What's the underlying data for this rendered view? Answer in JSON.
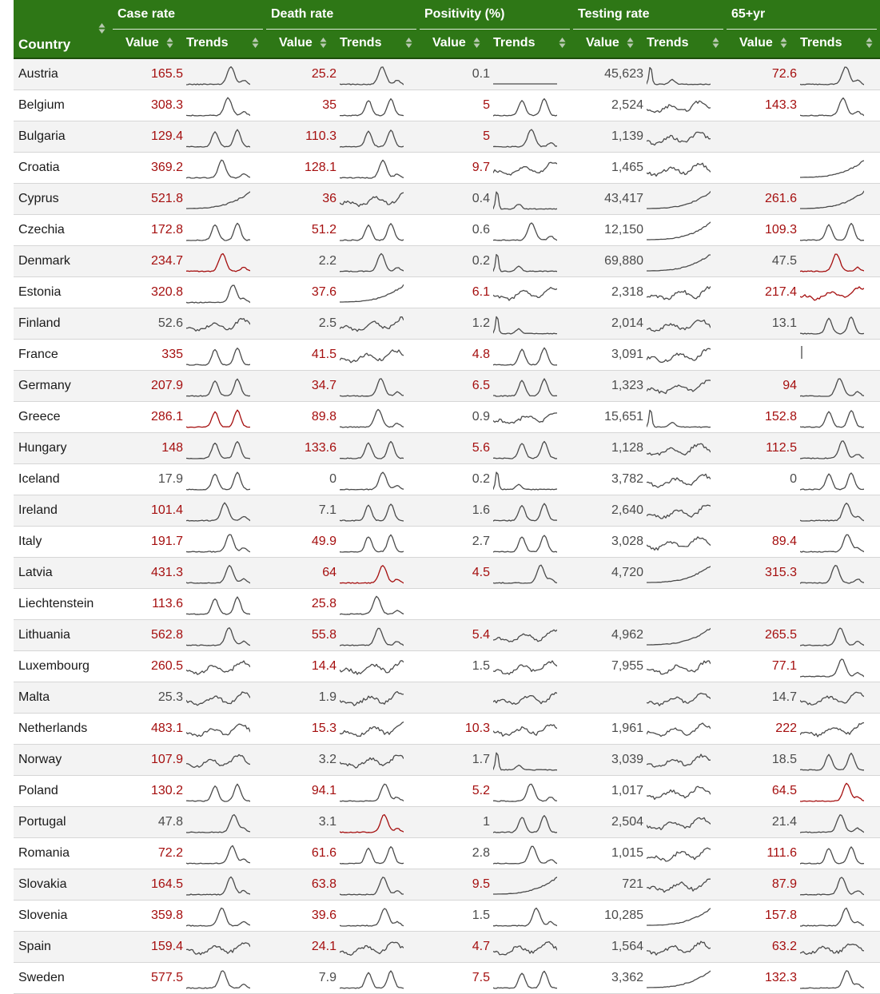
{
  "header": {
    "groups": [
      "Case rate",
      "Death rate",
      "Positivity (%)",
      "Testing rate",
      "65+yr"
    ],
    "country_label": "Country",
    "value_label": "Value",
    "trends_label": "Trends"
  },
  "colors": {
    "header_bg": "#2e7716",
    "above_threshold": "#a50f0f",
    "normal": "#4b4b4b",
    "highlight_trend": "#a50f0f"
  },
  "icons": {
    "sort": "sort-up-down-icon"
  },
  "rows": [
    {
      "country": "Austria",
      "values": [
        "165.5",
        "25.2",
        "0.1",
        "45,623",
        "72.6"
      ],
      "red": [
        true,
        true,
        false,
        false,
        true
      ],
      "trends": [
        "hump",
        "hump",
        "flat-hump",
        "flat-spike",
        "hump"
      ],
      "trend_red": [
        false,
        false,
        false,
        false,
        false
      ]
    },
    {
      "country": "Belgium",
      "values": [
        "308.3",
        "35",
        "5",
        "2,524",
        "143.3"
      ],
      "red": [
        true,
        true,
        true,
        false,
        true
      ],
      "trends": [
        "hump",
        "twin",
        "twin",
        "wavy",
        "hump"
      ],
      "trend_red": [
        false,
        false,
        false,
        false,
        false
      ]
    },
    {
      "country": "Bulgaria",
      "values": [
        "129.4",
        "110.3",
        "5",
        "1,139",
        ""
      ],
      "red": [
        true,
        true,
        true,
        false,
        false
      ],
      "trends": [
        "twin",
        "twin",
        "hump",
        "wavy",
        ""
      ],
      "trend_red": [
        false,
        false,
        false,
        false,
        false
      ]
    },
    {
      "country": "Croatia",
      "values": [
        "369.2",
        "128.1",
        "9.7",
        "1,465",
        ""
      ],
      "red": [
        true,
        true,
        true,
        false,
        false
      ],
      "trends": [
        "hump",
        "hump",
        "wavy",
        "wavy",
        "rise"
      ],
      "trend_red": [
        false,
        false,
        false,
        false,
        false
      ]
    },
    {
      "country": "Cyprus",
      "values": [
        "521.8",
        "36",
        "0.4",
        "43,417",
        "261.6"
      ],
      "red": [
        true,
        true,
        false,
        false,
        true
      ],
      "trends": [
        "rise",
        "wavy",
        "flat-spike",
        "rise",
        "rise"
      ],
      "trend_red": [
        false,
        false,
        false,
        false,
        false
      ]
    },
    {
      "country": "Czechia",
      "values": [
        "172.8",
        "51.2",
        "0.6",
        "12,150",
        "109.3"
      ],
      "red": [
        true,
        true,
        false,
        false,
        true
      ],
      "trends": [
        "twin",
        "twin",
        "hump",
        "rise",
        "twin"
      ],
      "trend_red": [
        false,
        false,
        false,
        false,
        false
      ]
    },
    {
      "country": "Denmark",
      "values": [
        "234.7",
        "2.2",
        "0.2",
        "69,880",
        "47.5"
      ],
      "red": [
        true,
        false,
        false,
        false,
        false
      ],
      "trends": [
        "hump",
        "hump",
        "flat-spike",
        "rise",
        "hump"
      ],
      "trend_red": [
        true,
        false,
        false,
        false,
        true
      ]
    },
    {
      "country": "Estonia",
      "values": [
        "320.8",
        "37.6",
        "6.1",
        "2,318",
        "217.4"
      ],
      "red": [
        true,
        true,
        true,
        false,
        true
      ],
      "trends": [
        "hump",
        "rise",
        "wavy",
        "wavy",
        "wavy"
      ],
      "trend_red": [
        false,
        false,
        false,
        false,
        true
      ]
    },
    {
      "country": "Finland",
      "values": [
        "52.6",
        "2.5",
        "1.2",
        "2,014",
        "13.1"
      ],
      "red": [
        false,
        false,
        false,
        false,
        false
      ],
      "trends": [
        "wavy",
        "wavy",
        "flat-spike",
        "wavy",
        "twin"
      ],
      "trend_red": [
        false,
        false,
        false,
        false,
        false
      ]
    },
    {
      "country": "France",
      "values": [
        "335",
        "41.5",
        "4.8",
        "3,091",
        ""
      ],
      "red": [
        true,
        true,
        true,
        false,
        false
      ],
      "trends": [
        "twin",
        "wavy",
        "twin",
        "wavy",
        "dots"
      ],
      "trend_red": [
        false,
        false,
        false,
        false,
        false
      ]
    },
    {
      "country": "Germany",
      "values": [
        "207.9",
        "34.7",
        "6.5",
        "1,323",
        "94"
      ],
      "red": [
        true,
        true,
        true,
        false,
        true
      ],
      "trends": [
        "twin",
        "hump",
        "twin",
        "wavy",
        "hump"
      ],
      "trend_red": [
        false,
        false,
        false,
        false,
        false
      ]
    },
    {
      "country": "Greece",
      "values": [
        "286.1",
        "89.8",
        "0.9",
        "15,651",
        "152.8"
      ],
      "red": [
        true,
        true,
        false,
        false,
        true
      ],
      "trends": [
        "twin",
        "hump",
        "wavy",
        "flat-spike",
        "twin"
      ],
      "trend_red": [
        true,
        false,
        false,
        false,
        false
      ]
    },
    {
      "country": "Hungary",
      "values": [
        "148",
        "133.6",
        "5.6",
        "1,128",
        "112.5"
      ],
      "red": [
        true,
        true,
        true,
        false,
        true
      ],
      "trends": [
        "twin",
        "twin",
        "twin",
        "wavy",
        "hump"
      ],
      "trend_red": [
        false,
        false,
        false,
        false,
        false
      ]
    },
    {
      "country": "Iceland",
      "values": [
        "17.9",
        "0",
        "0.2",
        "3,782",
        "0"
      ],
      "red": [
        false,
        false,
        false,
        false,
        false
      ],
      "trends": [
        "twin",
        "hump",
        "flat-spike",
        "wavy",
        "twin"
      ],
      "trend_red": [
        false,
        false,
        false,
        false,
        false
      ]
    },
    {
      "country": "Ireland",
      "values": [
        "101.4",
        "7.1",
        "1.6",
        "2,640",
        ""
      ],
      "red": [
        true,
        false,
        false,
        false,
        false
      ],
      "trends": [
        "hump",
        "twin",
        "twin",
        "wavy",
        "hump"
      ],
      "trend_red": [
        false,
        false,
        false,
        false,
        false
      ]
    },
    {
      "country": "Italy",
      "values": [
        "191.7",
        "49.9",
        "2.7",
        "3,028",
        "89.4"
      ],
      "red": [
        true,
        true,
        false,
        false,
        true
      ],
      "trends": [
        "hump",
        "twin",
        "twin",
        "wavy",
        "hump"
      ],
      "trend_red": [
        false,
        false,
        false,
        false,
        false
      ]
    },
    {
      "country": "Latvia",
      "values": [
        "431.3",
        "64",
        "4.5",
        "4,720",
        "315.3"
      ],
      "red": [
        true,
        true,
        true,
        false,
        true
      ],
      "trends": [
        "hump",
        "hump",
        "hump",
        "rise",
        "hump"
      ],
      "trend_red": [
        false,
        true,
        false,
        false,
        false
      ]
    },
    {
      "country": "Liechtenstein",
      "values": [
        "113.6",
        "25.8",
        "",
        "",
        ""
      ],
      "red": [
        true,
        true,
        false,
        false,
        false
      ],
      "trends": [
        "twin",
        "hump",
        "",
        "",
        ""
      ],
      "trend_red": [
        false,
        false,
        false,
        false,
        false
      ]
    },
    {
      "country": "Lithuania",
      "values": [
        "562.8",
        "55.8",
        "5.4",
        "4,962",
        "265.5"
      ],
      "red": [
        true,
        true,
        true,
        false,
        true
      ],
      "trends": [
        "hump",
        "hump",
        "wavy",
        "rise",
        "hump"
      ],
      "trend_red": [
        false,
        false,
        false,
        false,
        false
      ]
    },
    {
      "country": "Luxembourg",
      "values": [
        "260.5",
        "14.4",
        "1.5",
        "7,955",
        "77.1"
      ],
      "red": [
        true,
        true,
        false,
        false,
        true
      ],
      "trends": [
        "wavy",
        "wavy",
        "wavy",
        "wavy",
        "hump"
      ],
      "trend_red": [
        false,
        false,
        false,
        false,
        false
      ]
    },
    {
      "country": "Malta",
      "values": [
        "25.3",
        "1.9",
        "",
        "",
        "14.7"
      ],
      "red": [
        false,
        false,
        false,
        false,
        false
      ],
      "trends": [
        "wavy",
        "wavy",
        "wavy",
        "wavy",
        "wavy"
      ],
      "trend_red": [
        false,
        false,
        false,
        false,
        false
      ]
    },
    {
      "country": "Netherlands",
      "values": [
        "483.1",
        "15.3",
        "10.3",
        "1,961",
        "222"
      ],
      "red": [
        true,
        true,
        true,
        false,
        true
      ],
      "trends": [
        "wavy",
        "wavy",
        "wavy",
        "wavy",
        "wavy"
      ],
      "trend_red": [
        false,
        false,
        false,
        false,
        false
      ]
    },
    {
      "country": "Norway",
      "values": [
        "107.9",
        "3.2",
        "1.7",
        "3,039",
        "18.5"
      ],
      "red": [
        true,
        false,
        false,
        false,
        false
      ],
      "trends": [
        "wavy",
        "wavy",
        "flat-spike",
        "wavy",
        "twin"
      ],
      "trend_red": [
        false,
        false,
        false,
        false,
        false
      ]
    },
    {
      "country": "Poland",
      "values": [
        "130.2",
        "94.1",
        "5.2",
        "1,017",
        "64.5"
      ],
      "red": [
        true,
        true,
        true,
        false,
        true
      ],
      "trends": [
        "twin",
        "hump",
        "hump",
        "wavy",
        "hump"
      ],
      "trend_red": [
        false,
        false,
        false,
        false,
        true
      ]
    },
    {
      "country": "Portugal",
      "values": [
        "47.8",
        "3.1",
        "1",
        "2,504",
        "21.4"
      ],
      "red": [
        false,
        false,
        false,
        false,
        false
      ],
      "trends": [
        "hump",
        "hump",
        "twin",
        "wavy",
        "hump"
      ],
      "trend_red": [
        false,
        true,
        false,
        false,
        false
      ]
    },
    {
      "country": "Romania",
      "values": [
        "72.2",
        "61.6",
        "2.8",
        "1,015",
        "111.6"
      ],
      "red": [
        true,
        true,
        false,
        false,
        true
      ],
      "trends": [
        "hump",
        "twin",
        "hump",
        "wavy",
        "twin"
      ],
      "trend_red": [
        false,
        false,
        false,
        false,
        false
      ]
    },
    {
      "country": "Slovakia",
      "values": [
        "164.5",
        "63.8",
        "9.5",
        "721",
        "87.9"
      ],
      "red": [
        true,
        true,
        true,
        false,
        true
      ],
      "trends": [
        "hump",
        "hump",
        "rise",
        "wavy",
        "hump"
      ],
      "trend_red": [
        false,
        false,
        false,
        false,
        false
      ]
    },
    {
      "country": "Slovenia",
      "values": [
        "359.8",
        "39.6",
        "1.5",
        "10,285",
        "157.8"
      ],
      "red": [
        true,
        true,
        false,
        false,
        true
      ],
      "trends": [
        "hump",
        "hump",
        "hump",
        "rise",
        "hump"
      ],
      "trend_red": [
        false,
        false,
        false,
        false,
        false
      ]
    },
    {
      "country": "Spain",
      "values": [
        "159.4",
        "24.1",
        "4.7",
        "1,564",
        "63.2"
      ],
      "red": [
        true,
        true,
        true,
        false,
        true
      ],
      "trends": [
        "wavy",
        "wavy",
        "wavy",
        "wavy",
        "wavy"
      ],
      "trend_red": [
        false,
        false,
        false,
        false,
        false
      ]
    },
    {
      "country": "Sweden",
      "values": [
        "577.5",
        "7.9",
        "7.5",
        "3,362",
        "132.3"
      ],
      "red": [
        true,
        false,
        true,
        false,
        true
      ],
      "trends": [
        "hump",
        "twin",
        "twin",
        "rise",
        "hump"
      ],
      "trend_red": [
        false,
        false,
        false,
        false,
        false
      ]
    }
  ]
}
